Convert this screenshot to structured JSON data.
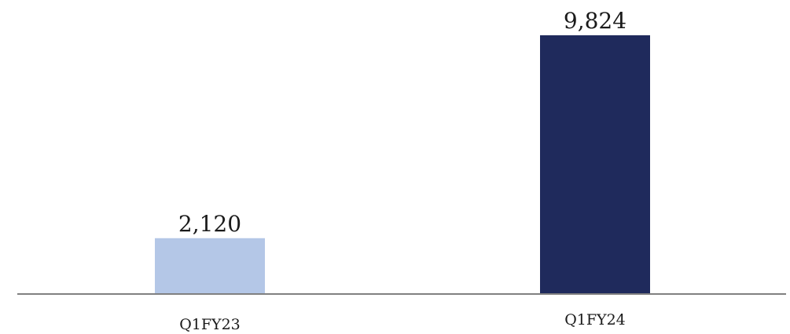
{
  "chart_data": {
    "type": "bar",
    "categories": [
      "Q1FY23",
      "Q1FY24"
    ],
    "values": [
      2120,
      9824
    ],
    "value_labels": [
      "2,120",
      "9,824"
    ],
    "colors": [
      "#b4c7e7",
      "#1f2a5c"
    ],
    "axis_color": "#808080",
    "title": "",
    "xlabel": "",
    "ylabel": "",
    "ylim": [
      0,
      10000
    ],
    "grid": false,
    "legend": "none"
  }
}
